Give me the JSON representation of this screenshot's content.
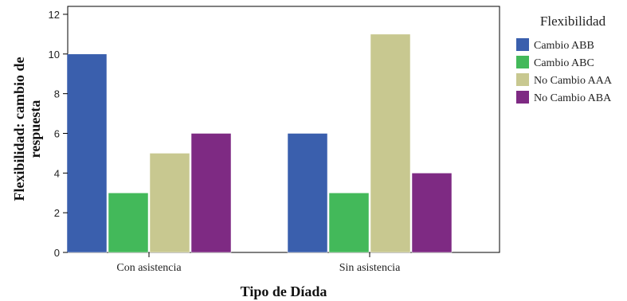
{
  "chart_data": {
    "type": "bar",
    "categories": [
      "Con asistencia",
      "Sin asistencia"
    ],
    "series": [
      {
        "name": "Cambio ABB",
        "values": [
          10,
          6
        ],
        "color": "#3a5fad"
      },
      {
        "name": "Cambio ABC",
        "values": [
          3,
          3
        ],
        "color": "#43b95a"
      },
      {
        "name": "No Cambio AAA",
        "values": [
          5,
          11
        ],
        "color": "#c8c890"
      },
      {
        "name": "No Cambio ABA",
        "values": [
          6,
          4
        ],
        "color": "#7e2a83"
      }
    ],
    "yticks": [
      "0",
      "2",
      "4",
      "6",
      "8",
      "10",
      "12"
    ],
    "ylim": [
      0,
      12.4
    ],
    "xlabel": "Tipo de Díada",
    "ylabel_lines": [
      "Flexibilidad: cambio de",
      "respuesta"
    ],
    "legend_title": "Flexibilidad",
    "legend_position": "right",
    "grid": false
  }
}
